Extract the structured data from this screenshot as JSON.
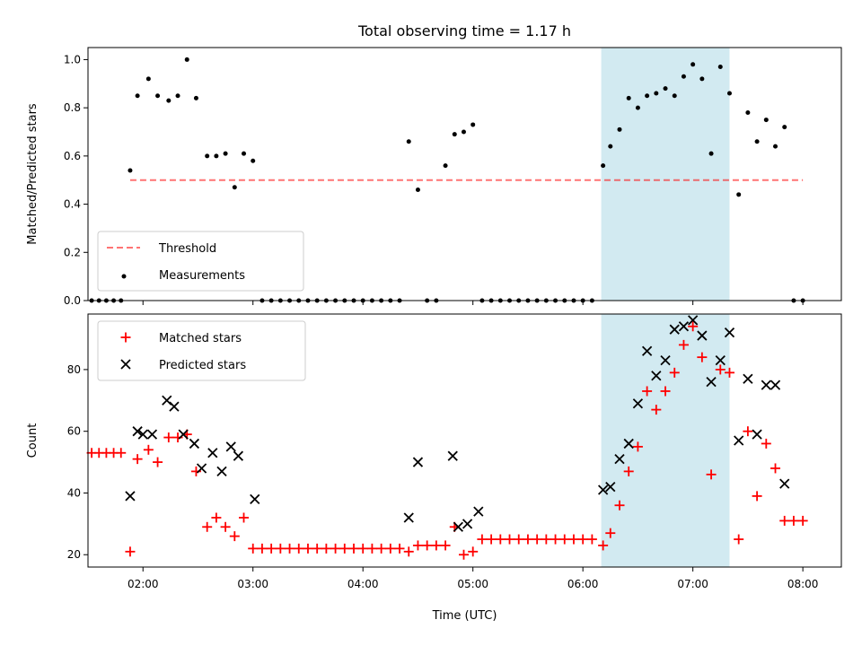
{
  "chart_data": [
    {
      "type": "scatter",
      "title": "Total observing time = 1.17 h",
      "xlabel": "",
      "ylabel": "Matched/Predicted stars",
      "ylim": [
        0.0,
        1.05
      ],
      "yticks": [
        "0.0",
        "0.2",
        "0.4",
        "0.6",
        "0.8",
        "1.0"
      ],
      "highlight_x": [
        "06:10",
        "07:20"
      ],
      "highlight_color": "#add8e6",
      "threshold": {
        "name": "Threshold",
        "y": 0.5,
        "x": [
          "01:53",
          "08:00"
        ],
        "color": "#ff0000"
      },
      "legend": {
        "position": "lower left",
        "entries": [
          "Threshold",
          "Measurements"
        ]
      },
      "series": [
        {
          "name": "Measurements",
          "color": "#000000",
          "x": [
            "01:32",
            "01:36",
            "01:40",
            "01:44",
            "01:48",
            "01:53",
            "01:57",
            "02:03",
            "02:08",
            "02:14",
            "02:19",
            "02:24",
            "02:29",
            "02:35",
            "02:40",
            "02:45",
            "02:50",
            "02:55",
            "03:00",
            "03:05",
            "03:10",
            "03:15",
            "03:20",
            "03:25",
            "03:30",
            "03:35",
            "03:40",
            "03:45",
            "03:50",
            "03:55",
            "04:00",
            "04:05",
            "04:10",
            "04:15",
            "04:20",
            "04:25",
            "04:30",
            "04:35",
            "04:40",
            "04:45",
            "04:50",
            "04:55",
            "05:00",
            "05:05",
            "05:10",
            "05:15",
            "05:20",
            "05:25",
            "05:30",
            "05:35",
            "05:40",
            "05:45",
            "05:50",
            "05:55",
            "06:00",
            "06:05",
            "06:11",
            "06:15",
            "06:20",
            "06:25",
            "06:30",
            "06:35",
            "06:40",
            "06:45",
            "06:50",
            "06:55",
            "07:00",
            "07:05",
            "07:10",
            "07:15",
            "07:20",
            "07:25",
            "07:30",
            "07:35",
            "07:40",
            "07:45",
            "07:50",
            "07:55",
            "08:00"
          ],
          "y": [
            0,
            0,
            0,
            0,
            0,
            0.54,
            0.85,
            0.92,
            0.85,
            0.83,
            0.85,
            1.0,
            0.84,
            0.6,
            0.6,
            0.61,
            0.47,
            0.61,
            0.58,
            0,
            0,
            0,
            0,
            0,
            0,
            0,
            0,
            0,
            0,
            0,
            0,
            0,
            0,
            0,
            0,
            0.66,
            0.46,
            0,
            0,
            0.56,
            0.69,
            0.7,
            0.73,
            0,
            0,
            0,
            0,
            0,
            0,
            0,
            0,
            0,
            0,
            0,
            0,
            0,
            0.56,
            0.64,
            0.71,
            0.84,
            0.8,
            0.85,
            0.86,
            0.88,
            0.85,
            0.93,
            0.98,
            0.92,
            0.61,
            0.97,
            0.86,
            0.44,
            0.78,
            0.66,
            0.75,
            0.64,
            0.72,
            0,
            0
          ]
        }
      ]
    },
    {
      "type": "scatter",
      "title": "",
      "xlabel": "Time (UTC)",
      "ylabel": "Count",
      "ylim": [
        16,
        98
      ],
      "yticks": [
        "20",
        "40",
        "60",
        "80"
      ],
      "xticks": [
        "02:00",
        "03:00",
        "04:00",
        "05:00",
        "06:00",
        "07:00",
        "08:00"
      ],
      "highlight_x": [
        "06:10",
        "07:20"
      ],
      "highlight_color": "#add8e6",
      "legend": {
        "position": "upper left",
        "entries": [
          "Matched stars",
          "Predicted stars"
        ]
      },
      "series": [
        {
          "name": "Matched stars",
          "marker": "+",
          "color": "#ff0000",
          "x": [
            "01:32",
            "01:36",
            "01:40",
            "01:44",
            "01:48",
            "01:53",
            "01:57",
            "02:03",
            "02:08",
            "02:14",
            "02:19",
            "02:24",
            "02:29",
            "02:35",
            "02:40",
            "02:45",
            "02:50",
            "02:55",
            "03:00",
            "03:05",
            "03:10",
            "03:15",
            "03:20",
            "03:25",
            "03:30",
            "03:35",
            "03:40",
            "03:45",
            "03:50",
            "03:55",
            "04:00",
            "04:05",
            "04:10",
            "04:15",
            "04:20",
            "04:25",
            "04:30",
            "04:35",
            "04:40",
            "04:45",
            "04:50",
            "04:55",
            "05:00",
            "05:05",
            "05:10",
            "05:15",
            "05:20",
            "05:25",
            "05:30",
            "05:35",
            "05:40",
            "05:45",
            "05:50",
            "05:55",
            "06:00",
            "06:05",
            "06:11",
            "06:15",
            "06:20",
            "06:25",
            "06:30",
            "06:35",
            "06:40",
            "06:45",
            "06:50",
            "06:55",
            "07:00",
            "07:05",
            "07:10",
            "07:15",
            "07:20",
            "07:25",
            "07:30",
            "07:35",
            "07:40",
            "07:45",
            "07:50",
            "07:55",
            "08:00"
          ],
          "y": [
            53,
            53,
            53,
            53,
            53,
            21,
            51,
            54,
            50,
            58,
            58,
            59,
            47,
            29,
            32,
            29,
            26,
            32,
            22,
            22,
            22,
            22,
            22,
            22,
            22,
            22,
            22,
            22,
            22,
            22,
            22,
            22,
            22,
            22,
            22,
            21,
            23,
            23,
            23,
            23,
            29,
            20,
            21,
            25,
            25,
            25,
            25,
            25,
            25,
            25,
            25,
            25,
            25,
            25,
            25,
            25,
            23,
            27,
            36,
            47,
            55,
            73,
            67,
            73,
            79,
            88,
            94,
            84,
            46,
            80,
            79,
            25,
            60,
            39,
            56,
            48,
            31,
            31,
            31
          ]
        },
        {
          "name": "Predicted stars",
          "marker": "x",
          "color": "#000000",
          "x": [
            "01:53",
            "01:57",
            "02:00",
            "02:05",
            "02:13",
            "02:17",
            "02:22",
            "02:28",
            "02:32",
            "02:38",
            "02:43",
            "02:48",
            "02:52",
            "03:01",
            "04:25",
            "04:30",
            "04:49",
            "04:52",
            "04:57",
            "05:03",
            "06:11",
            "06:15",
            "06:20",
            "06:25",
            "06:30",
            "06:35",
            "06:40",
            "06:45",
            "06:50",
            "06:55",
            "07:00",
            "07:05",
            "07:10",
            "07:15",
            "07:20",
            "07:25",
            "07:30",
            "07:35",
            "07:40",
            "07:45",
            "07:50"
          ],
          "y": [
            39,
            60,
            59,
            59,
            70,
            68,
            59,
            56,
            48,
            53,
            47,
            55,
            52,
            38,
            32,
            50,
            52,
            29,
            30,
            34,
            41,
            42,
            51,
            56,
            69,
            86,
            78,
            83,
            93,
            94,
            96,
            91,
            76,
            83,
            92,
            57,
            77,
            59,
            75,
            75,
            43
          ]
        }
      ]
    }
  ]
}
